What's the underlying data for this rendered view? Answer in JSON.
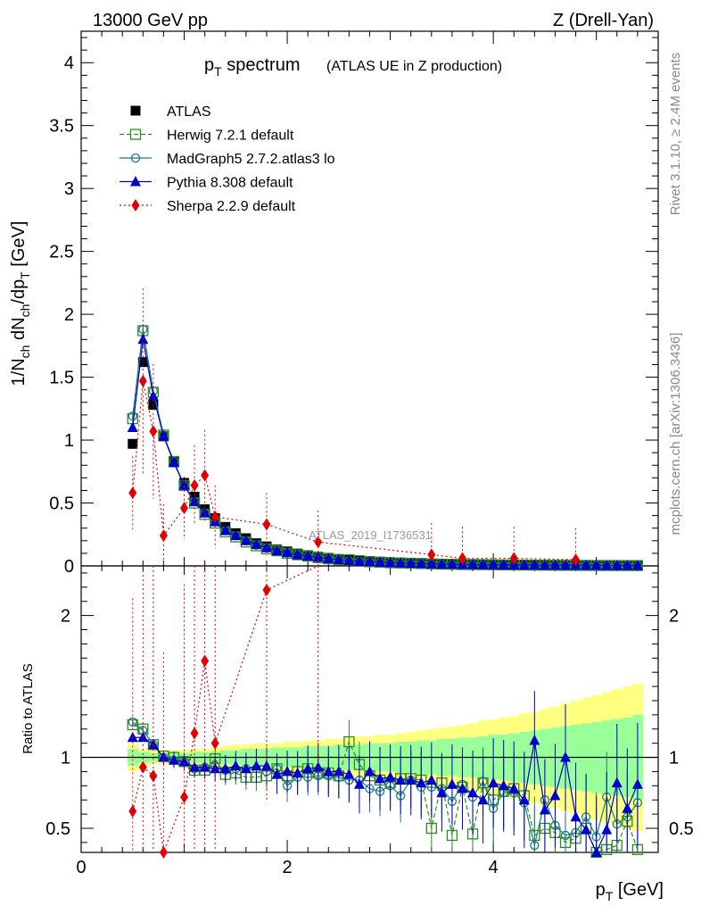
{
  "header": {
    "left": "13000 GeV pp",
    "right": "Z (Drell-Yan)",
    "side_rivet": "Rivet 3.1.10, ≥ 2.4M events",
    "side_mcplots": "mcplots.cern.ch [arXiv:1306.3436]"
  },
  "chart_data": [
    {
      "type": "scatter",
      "title": "p_T spectrum",
      "subtitle": "(ATLAS UE in Z production)",
      "watermark": "ATLAS_2019_I1736531",
      "xlim": [
        0,
        5.6
      ],
      "ylim": [
        0,
        4.25
      ],
      "yticks": [
        "0",
        "0.5",
        "1",
        "1.5",
        "2",
        "2.5",
        "3",
        "3.5",
        "4"
      ],
      "ylabel": "1/N_ch dN_ch/dp_T [GeV]",
      "legend_position": "top-left",
      "x": [
        0.5,
        0.6,
        0.7,
        0.8,
        0.9,
        1.0,
        1.1,
        1.2,
        1.3,
        1.4,
        1.5,
        1.6,
        1.7,
        1.8,
        1.9,
        2.0,
        2.1,
        2.2,
        2.3,
        2.4,
        2.5,
        2.6,
        2.7,
        2.8,
        2.9,
        3.0,
        3.1,
        3.2,
        3.3,
        3.4,
        3.5,
        3.6,
        3.7,
        3.8,
        3.9,
        4.0,
        4.1,
        4.2,
        4.3,
        4.4,
        4.5,
        4.6,
        4.7,
        4.8,
        4.9,
        5.0,
        5.1,
        5.2,
        5.3,
        5.4
      ],
      "series": [
        {
          "name": "ATLAS",
          "color": "#000000",
          "marker": "filled-square",
          "values": [
            0.97,
            1.62,
            1.28,
            1.03,
            0.83,
            0.66,
            0.55,
            0.45,
            0.38,
            0.31,
            0.26,
            0.22,
            0.18,
            0.155,
            0.13,
            0.115,
            0.098,
            0.085,
            0.073,
            0.064,
            0.055,
            0.049,
            0.043,
            0.038,
            0.034,
            0.03,
            0.027,
            0.024,
            0.022,
            0.019,
            0.017,
            0.016,
            0.014,
            0.013,
            0.012,
            0.011,
            0.01,
            0.009,
            0.0085,
            0.008,
            0.0072,
            0.0066,
            0.006,
            0.0055,
            0.005,
            0.0046,
            0.0042,
            0.0039,
            0.0036,
            0.0033
          ]
        },
        {
          "name": "Herwig 7.2.1 default",
          "color": "#2e8b1e",
          "marker": "open-square",
          "line": "dashed",
          "values": [
            1.17,
            1.87,
            1.38,
            1.04,
            0.83,
            0.64,
            0.5,
            0.41,
            0.34,
            0.27,
            0.23,
            0.19,
            0.16,
            0.135,
            0.12,
            0.1,
            0.088,
            0.078,
            0.065,
            0.057,
            0.048,
            0.049,
            0.042,
            0.033,
            0.029,
            0.025,
            0.023,
            0.021,
            0.019,
            0.016,
            0.014,
            0.013,
            0.011,
            0.011,
            0.01,
            0.009,
            0.008,
            0.0072,
            0.0068,
            0.006,
            0.0055,
            0.005,
            0.0045,
            0.0042,
            0.0038,
            0.0032,
            0.003,
            0.0028,
            0.0026,
            0.0025
          ]
        },
        {
          "name": "MadGraph5 2.7.2.atlas3 lo",
          "color": "#1a7e7e",
          "marker": "open-circle",
          "line": "solid",
          "values": [
            1.19,
            1.88,
            1.39,
            1.04,
            0.83,
            0.64,
            0.51,
            0.42,
            0.35,
            0.28,
            0.24,
            0.2,
            0.165,
            0.14,
            0.12,
            0.105,
            0.09,
            0.076,
            0.064,
            0.056,
            0.047,
            0.041,
            0.036,
            0.031,
            0.027,
            0.024,
            0.022,
            0.02,
            0.018,
            0.015,
            0.013,
            0.012,
            0.01,
            0.01,
            0.009,
            0.008,
            0.007,
            0.0062,
            0.0058,
            0.0052,
            0.0048,
            0.0044,
            0.004,
            0.0038,
            0.0035,
            0.003,
            0.0028,
            0.0026,
            0.0025,
            0.0023
          ]
        },
        {
          "name": "Pythia 8.308 default",
          "color": "#0000cc",
          "marker": "filled-triangle",
          "line": "solid",
          "values": [
            1.1,
            1.8,
            1.35,
            1.03,
            0.82,
            0.64,
            0.51,
            0.42,
            0.35,
            0.28,
            0.24,
            0.2,
            0.17,
            0.145,
            0.12,
            0.105,
            0.088,
            0.078,
            0.068,
            0.058,
            0.05,
            0.043,
            0.035,
            0.034,
            0.029,
            0.026,
            0.023,
            0.02,
            0.018,
            0.016,
            0.013,
            0.013,
            0.011,
            0.01,
            0.009,
            0.009,
            0.008,
            0.007,
            0.006,
            0.006,
            0.005,
            0.005,
            0.0045,
            0.004,
            0.0035,
            0.0035,
            0.003,
            0.003,
            0.0027,
            0.0025
          ]
        },
        {
          "name": "Sherpa 2.2.9 default",
          "color": "#e00000",
          "marker": "filled-diamond",
          "line": "dotted",
          "x": [
            0.5,
            0.6,
            0.7,
            0.8,
            1.0,
            1.1,
            1.2,
            1.3,
            1.8,
            2.3,
            3.4,
            3.7,
            4.2,
            4.8
          ],
          "values": [
            0.58,
            1.47,
            1.07,
            0.24,
            0.46,
            0.64,
            0.72,
            0.39,
            0.33,
            0.19,
            0.09,
            0.06,
            0.06,
            0.05
          ]
        }
      ]
    },
    {
      "type": "scatter",
      "ylabel": "Ratio to ATLAS",
      "xlabel": "p_T [GeV]",
      "xlim": [
        0,
        5.6
      ],
      "xticks": [
        "0",
        "2",
        "4"
      ],
      "ylim": [
        0.33,
        2.35
      ],
      "yticks": [
        "0.5",
        "1",
        "2"
      ],
      "reference_line": 1,
      "bands": [
        {
          "name": "ATLAS uncertainty (yellow)",
          "color": "#ffff80",
          "half_width": [
            0.1,
            0.06,
            0.05,
            0.05,
            0.05,
            0.05,
            0.06,
            0.06,
            0.07,
            0.08,
            0.09,
            0.09,
            0.1,
            0.1,
            0.1,
            0.11,
            0.11,
            0.12,
            0.12,
            0.13,
            0.13,
            0.14,
            0.15,
            0.15,
            0.16,
            0.16,
            0.17,
            0.18,
            0.19,
            0.2,
            0.21,
            0.22,
            0.23,
            0.24,
            0.26,
            0.27,
            0.28,
            0.29,
            0.31,
            0.32,
            0.34,
            0.36,
            0.38,
            0.4,
            0.42,
            0.44,
            0.46,
            0.48,
            0.5,
            0.52
          ]
        },
        {
          "name": "ATLAS stat. uncertainty (green)",
          "color": "#99ff99",
          "half_width": [
            0.06,
            0.04,
            0.03,
            0.03,
            0.03,
            0.03,
            0.04,
            0.04,
            0.04,
            0.05,
            0.05,
            0.06,
            0.06,
            0.06,
            0.07,
            0.07,
            0.07,
            0.08,
            0.08,
            0.08,
            0.09,
            0.09,
            0.09,
            0.1,
            0.1,
            0.1,
            0.11,
            0.11,
            0.12,
            0.12,
            0.13,
            0.13,
            0.14,
            0.14,
            0.15,
            0.16,
            0.16,
            0.17,
            0.18,
            0.19,
            0.2,
            0.21,
            0.22,
            0.23,
            0.24,
            0.25,
            0.26,
            0.27,
            0.28,
            0.3
          ]
        }
      ],
      "series": [
        {
          "name": "Herwig 7.2.1 default",
          "color": "#2e8b1e",
          "marker": "open-square",
          "line": "dashed",
          "values": [
            1.23,
            1.2,
            1.09,
            1.01,
            1.0,
            0.97,
            0.91,
            0.91,
            0.99,
            0.88,
            0.89,
            0.86,
            0.86,
            0.87,
            0.92,
            0.87,
            0.9,
            0.92,
            0.89,
            0.89,
            0.87,
            1.11,
            0.95,
            0.87,
            0.84,
            0.82,
            0.85,
            0.85,
            0.84,
            0.5,
            0.82,
            0.45,
            0.79,
            0.46,
            0.82,
            0.7,
            0.76,
            0.78,
            0.73,
            0.45,
            0.5,
            0.47,
            0.4,
            0.43,
            0.5,
            0.33,
            0.35,
            0.38,
            0.55,
            0.35
          ]
        },
        {
          "name": "MadGraph5 2.7.2.atlas3 lo",
          "color": "#1a7e7e",
          "marker": "open-circle",
          "line": "solid",
          "values": [
            1.25,
            1.19,
            1.09,
            1.0,
            0.98,
            0.97,
            0.92,
            0.93,
            0.94,
            0.91,
            0.92,
            0.92,
            0.92,
            0.9,
            0.92,
            0.8,
            0.86,
            0.86,
            0.87,
            0.87,
            0.86,
            0.84,
            0.84,
            0.78,
            0.76,
            0.8,
            0.73,
            0.84,
            0.79,
            0.79,
            0.78,
            0.69,
            0.81,
            0.72,
            0.83,
            0.64,
            0.75,
            0.75,
            0.68,
            0.38,
            0.7,
            0.52,
            0.45,
            0.47,
            0.58,
            0.44,
            0.72,
            0.53,
            0.58,
            0.68
          ]
        },
        {
          "name": "Pythia 8.308 default",
          "color": "#0000cc",
          "marker": "filled-triangle",
          "line": "solid",
          "values": [
            1.14,
            1.14,
            1.09,
            1.0,
            0.98,
            0.97,
            0.93,
            0.93,
            0.92,
            0.92,
            0.94,
            0.92,
            0.94,
            0.94,
            0.88,
            0.9,
            0.89,
            0.92,
            0.93,
            0.9,
            0.9,
            0.88,
            0.81,
            0.9,
            0.85,
            0.86,
            0.84,
            0.84,
            0.82,
            0.84,
            0.75,
            0.81,
            0.78,
            0.75,
            0.7,
            0.82,
            0.8,
            0.78,
            0.7,
            1.12,
            0.63,
            0.73,
            1.0,
            0.58,
            0.49,
            0.33,
            0.49,
            0.82,
            0.64,
            0.81
          ]
        },
        {
          "name": "Sherpa 2.2.9 default",
          "color": "#e00000",
          "marker": "filled-diamond",
          "line": "dotted",
          "x": [
            0.5,
            0.6,
            0.7,
            0.8,
            1.0,
            1.1,
            1.2,
            1.3,
            1.8,
            2.3
          ],
          "values": [
            0.62,
            0.93,
            0.87,
            0.24,
            0.72,
            1.17,
            1.68,
            1.1,
            2.18,
            2.35
          ]
        }
      ]
    }
  ]
}
